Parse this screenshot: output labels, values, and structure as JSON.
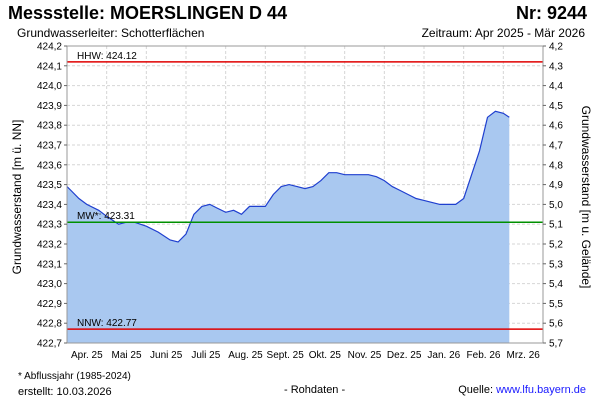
{
  "header": {
    "title": "Messstelle: MOERSLINGEN D 44",
    "number": "Nr: 9244",
    "aquifer": "Grundwasserleiter:   Schotterflächen",
    "period": "Zeitraum: Apr 2025 - Mär 2026"
  },
  "footer": {
    "note": "* Abflussjahr (1985-2024)",
    "created": "erstellt:  10.03.2026",
    "raw": "- Rohdaten -",
    "source_prefix": "Quelle: ",
    "source_link": "www.lfu.bayern.de"
  },
  "colors": {
    "area_fill": "#a9c8f0",
    "line": "#1f3fcf",
    "hhw": "#e00000",
    "mw": "#009000",
    "nnw": "#e00000",
    "grid": "#d6d6d6"
  },
  "chart_data": {
    "type": "area",
    "ylabel_left": "Grundwasserstand [m ü. NN]",
    "ylabel_right": "Grundwasserstand [m u. Gelände]",
    "ylim": [
      422.7,
      424.2
    ],
    "yticks_left": [
      "424,2",
      "424,1",
      "424,0",
      "423,9",
      "423,8",
      "423,7",
      "423,6",
      "423,5",
      "423,4",
      "423,3",
      "423,2",
      "423,1",
      "423,0",
      "422,9",
      "422,8",
      "422,7"
    ],
    "yticks_right": [
      "4,2",
      "4,3",
      "4,4",
      "4,5",
      "4,6",
      "4,7",
      "4,8",
      "4,9",
      "5,0",
      "5,1",
      "5,2",
      "5,3",
      "5,4",
      "5,5",
      "5,6",
      "5,7"
    ],
    "x_categories": [
      "Apr. 25",
      "Mai 25",
      "Juni 25",
      "Juli 25",
      "Aug. 25",
      "Sept. 25",
      "Okt. 25",
      "Nov. 25",
      "Dez. 25",
      "Jan. 26",
      "Feb. 26",
      "Mrz. 26"
    ],
    "grid": true,
    "reference_lines": [
      {
        "label": "HHW: 424.12",
        "value": 424.12,
        "color": "#e00000"
      },
      {
        "label": "MW*: 423.31",
        "value": 423.31,
        "color": "#009000"
      },
      {
        "label": "NNW: 422.77",
        "value": 422.77,
        "color": "#e00000"
      }
    ],
    "series": [
      {
        "x": [
          0,
          0.1,
          0.3,
          0.5,
          0.8,
          1.0,
          1.3,
          1.5,
          1.7,
          2.0,
          2.3,
          2.6,
          2.8,
          3.0,
          3.2,
          3.4,
          3.6,
          3.8,
          4.0,
          4.2,
          4.4,
          4.6,
          4.8,
          5.0,
          5.2,
          5.4,
          5.6,
          5.8,
          6.0,
          6.2,
          6.4,
          6.6,
          6.8,
          7.0,
          7.2,
          7.4,
          7.6,
          7.8,
          8.0,
          8.2,
          8.4,
          8.6,
          8.8,
          9.0,
          9.2,
          9.4,
          9.6,
          9.8,
          10.0,
          10.2,
          10.4,
          10.6,
          10.8,
          11.0,
          11.15
        ],
        "values": [
          423.49,
          423.47,
          423.43,
          423.4,
          423.37,
          423.34,
          423.3,
          423.31,
          423.31,
          423.29,
          423.26,
          423.22,
          423.21,
          423.25,
          423.35,
          423.39,
          423.4,
          423.38,
          423.36,
          423.37,
          423.35,
          423.39,
          423.39,
          423.39,
          423.45,
          423.49,
          423.5,
          423.49,
          423.48,
          423.49,
          423.52,
          423.56,
          423.56,
          423.55,
          423.55,
          423.55,
          423.55,
          423.54,
          423.52,
          423.49,
          423.47,
          423.45,
          423.43,
          423.42,
          423.41,
          423.4,
          423.4,
          423.4,
          423.43,
          423.55,
          423.67,
          423.84,
          423.87,
          423.86,
          423.84
        ]
      }
    ]
  }
}
